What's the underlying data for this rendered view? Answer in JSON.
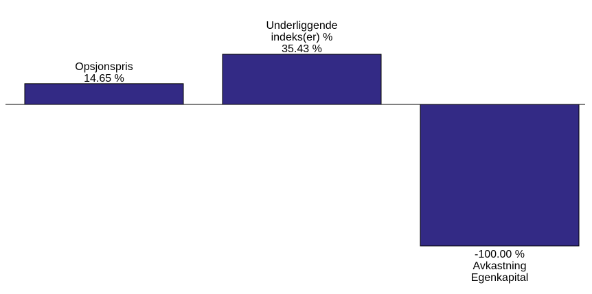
{
  "chart_data": {
    "type": "bar",
    "categories": [
      "Opsjonspris",
      "Underliggende indeks(er) %",
      "Avkastning Egenkapital"
    ],
    "values": [
      14.65,
      35.43,
      -100.0
    ],
    "value_labels": [
      "14.65 %",
      "35.43 %",
      "-100.00 %"
    ],
    "category_label_lines": [
      [
        "Opsjonspris"
      ],
      [
        "Underliggende",
        "indeks(er) %"
      ],
      [
        "Avkastning",
        "Egenkapital"
      ]
    ],
    "unit": "%",
    "ylim": [
      -100,
      35.43
    ],
    "grid": false,
    "legend": "none",
    "colors": {
      "bar_fill": "#332a85",
      "bar_stroke": "#000000",
      "baseline": "#000000",
      "text": "#000000"
    }
  }
}
